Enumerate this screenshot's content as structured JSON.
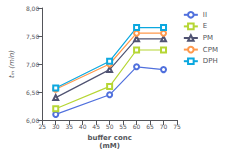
{
  "chart_data": {
    "type": "line",
    "xlabel": "buffer conc\n(mM)",
    "ylabel": "tₘ (min)",
    "x": [
      30,
      50,
      60,
      70
    ],
    "series": [
      {
        "name": "II",
        "values": [
          6.1,
          6.45,
          6.95,
          6.9
        ],
        "marker": "circle"
      },
      {
        "name": "E",
        "values": [
          6.2,
          6.6,
          7.25,
          7.25
        ],
        "marker": "square"
      },
      {
        "name": "PM",
        "values": [
          6.4,
          6.9,
          7.45,
          7.45
        ],
        "marker": "triangle"
      },
      {
        "name": "CPM",
        "values": [
          6.55,
          7.0,
          7.55,
          7.55
        ],
        "marker": "circle"
      },
      {
        "name": "DPH",
        "values": [
          6.57,
          7.05,
          7.65,
          7.65
        ],
        "marker": "square"
      }
    ],
    "xlim": [
      25,
      75
    ],
    "ylim": [
      6.0,
      8.0
    ],
    "xticks": [
      25,
      30,
      35,
      40,
      45,
      50,
      55,
      60,
      65,
      70,
      75
    ],
    "yticks": [
      {
        "value": 6.0,
        "label": "6,00"
      },
      {
        "value": 6.5,
        "label": "6,50"
      },
      {
        "value": 7.0,
        "label": "7,00"
      },
      {
        "value": 7.5,
        "label": "7,50"
      },
      {
        "value": 8.0,
        "label": "8,00"
      }
    ],
    "grid": false,
    "legend": "right"
  }
}
